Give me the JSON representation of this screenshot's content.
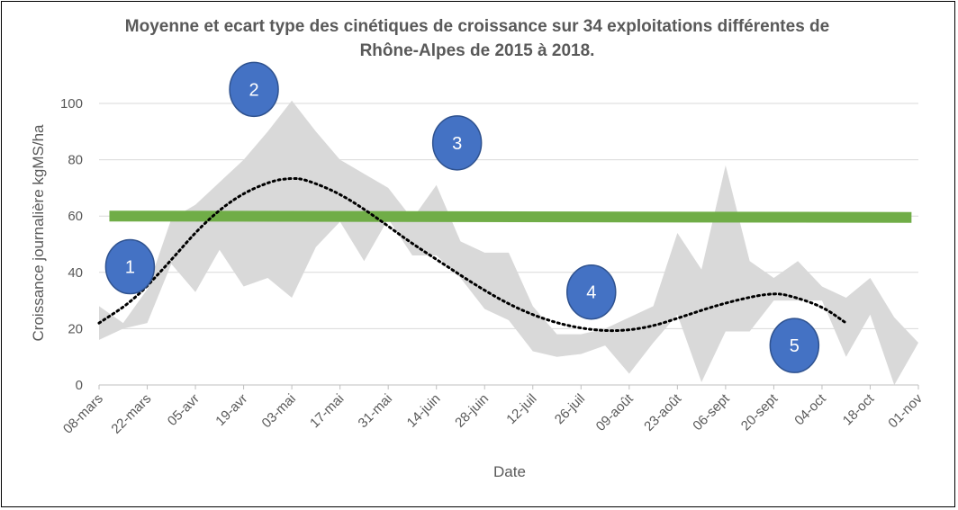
{
  "chart_data": {
    "type": "area",
    "title": "Moyenne et ecart type des cinétiques de croissance sur 34 exploitations différentes de\nRhône-Alpes de 2015 à 2018.",
    "xlabel": "Date",
    "ylabel": "Croissance journalière kgMS/ha",
    "ylim": [
      0,
      100
    ],
    "yticks": [
      0,
      20,
      40,
      60,
      80,
      100
    ],
    "xlim": [
      0,
      238
    ],
    "xtick_labels": [
      "08-mars",
      "22-mars",
      "05-avr",
      "19-avr",
      "03-mai",
      "17-mai",
      "31-mai",
      "14-juin",
      "28-juin",
      "12-juil",
      "26-juil",
      "09-août",
      "23-août",
      "06-sept",
      "20-sept",
      "04-oct",
      "18-oct",
      "01-nov"
    ],
    "xtick_positions": [
      0,
      14,
      28,
      42,
      56,
      70,
      84,
      98,
      112,
      126,
      140,
      154,
      168,
      182,
      196,
      210,
      224,
      238
    ],
    "grid": "horizontal",
    "band": {
      "x": [
        0,
        7,
        14,
        21,
        28,
        35,
        42,
        49,
        56,
        63,
        70,
        77,
        84,
        91,
        98,
        105,
        112,
        119,
        126,
        133,
        140,
        147,
        154,
        161,
        168,
        175,
        182,
        189,
        196,
        203,
        210,
        217,
        224,
        231,
        238
      ],
      "upper": [
        28,
        22,
        34,
        59,
        64,
        72,
        80,
        90,
        101,
        90,
        80,
        75,
        70,
        59,
        71,
        51,
        47,
        47,
        28,
        18,
        18,
        20,
        24,
        28,
        54,
        41,
        78,
        44,
        38,
        44,
        35,
        31,
        38,
        24,
        15
      ],
      "lower": [
        16,
        20,
        22,
        43,
        33,
        48,
        35,
        38,
        31,
        49,
        58,
        44,
        59,
        46,
        46,
        38,
        27,
        23,
        12,
        10,
        11,
        14,
        4,
        15,
        25,
        1,
        19,
        19,
        30,
        30,
        30,
        10,
        25,
        0,
        15
      ]
    },
    "threshold": {
      "x": [
        3,
        236
      ],
      "y": [
        60,
        59.5
      ],
      "color": "#70ad47"
    },
    "trend": {
      "x": [
        0,
        10,
        20,
        30,
        40,
        50,
        56,
        60,
        70,
        80,
        90,
        100,
        110,
        120,
        130,
        140,
        150,
        160,
        170,
        180,
        190,
        196,
        200,
        210,
        217
      ],
      "y": [
        22,
        30,
        43,
        57,
        67,
        72.5,
        73.5,
        73,
        68,
        60,
        51,
        43,
        35,
        28,
        23,
        20,
        19,
        20.5,
        24.5,
        28.5,
        31.5,
        32.5,
        32,
        28,
        22
      ],
      "color": "#000000"
    },
    "band_color": "#d9d9d9",
    "markers": [
      {
        "label": "1",
        "x": 9,
        "y": 42
      },
      {
        "label": "2",
        "x": 45,
        "y": 105
      },
      {
        "label": "3",
        "x": 104,
        "y": 86
      },
      {
        "label": "4",
        "x": 143,
        "y": 33
      },
      {
        "label": "5",
        "x": 202,
        "y": 14
      }
    ],
    "marker_fill": "#4472c4",
    "marker_stroke": "#2f528f"
  }
}
